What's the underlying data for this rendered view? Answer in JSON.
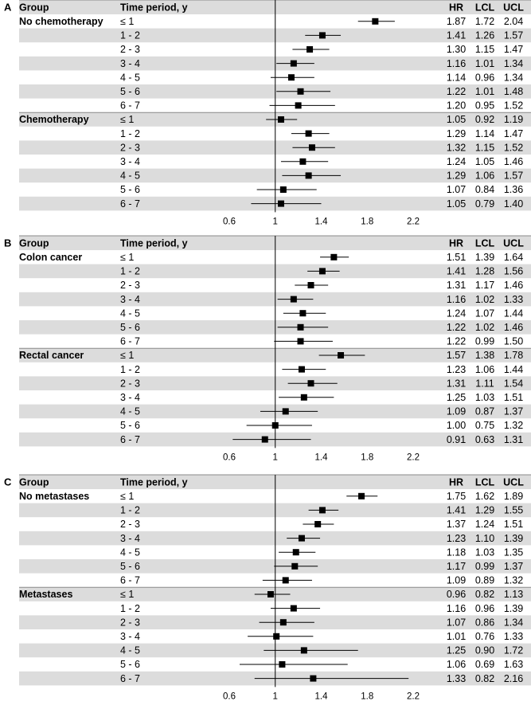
{
  "chart_data": [
    {
      "type": "forest",
      "panel_label": "A",
      "headers": {
        "group": "Group",
        "period": "Time period, y",
        "hr": "HR",
        "lcl": "LCL",
        "ucl": "UCL"
      },
      "xlim": [
        0.6,
        2.2
      ],
      "xticks": [
        "0.6",
        "1",
        "1.4",
        "1.8",
        "2.2"
      ],
      "reference_line": 1,
      "groups": [
        {
          "name": "No chemotherapy",
          "rows": [
            {
              "period": "≤ 1",
              "hr": "1.87",
              "lcl": "1.72",
              "ucl": "2.04"
            },
            {
              "period": "1 - 2",
              "hr": "1.41",
              "lcl": "1.26",
              "ucl": "1.57"
            },
            {
              "period": "2 - 3",
              "hr": "1.30",
              "lcl": "1.15",
              "ucl": "1.47"
            },
            {
              "period": "3 - 4",
              "hr": "1.16",
              "lcl": "1.01",
              "ucl": "1.34"
            },
            {
              "period": "4 - 5",
              "hr": "1.14",
              "lcl": "0.96",
              "ucl": "1.34"
            },
            {
              "period": "5 - 6",
              "hr": "1.22",
              "lcl": "1.01",
              "ucl": "1.48"
            },
            {
              "period": "6 - 7",
              "hr": "1.20",
              "lcl": "0.95",
              "ucl": "1.52"
            }
          ]
        },
        {
          "name": "Chemotherapy",
          "rows": [
            {
              "period": "≤ 1",
              "hr": "1.05",
              "lcl": "0.92",
              "ucl": "1.19"
            },
            {
              "period": "1 - 2",
              "hr": "1.29",
              "lcl": "1.14",
              "ucl": "1.47"
            },
            {
              "period": "2 - 3",
              "hr": "1.32",
              "lcl": "1.15",
              "ucl": "1.52"
            },
            {
              "period": "3 - 4",
              "hr": "1.24",
              "lcl": "1.05",
              "ucl": "1.46"
            },
            {
              "period": "4 - 5",
              "hr": "1.29",
              "lcl": "1.06",
              "ucl": "1.57"
            },
            {
              "period": "5 - 6",
              "hr": "1.07",
              "lcl": "0.84",
              "ucl": "1.36"
            },
            {
              "period": "6 - 7",
              "hr": "1.05",
              "lcl": "0.79",
              "ucl": "1.40"
            }
          ]
        }
      ]
    },
    {
      "type": "forest",
      "panel_label": "B",
      "headers": {
        "group": "Group",
        "period": "Time period, y",
        "hr": "HR",
        "lcl": "LCL",
        "ucl": "UCL"
      },
      "xlim": [
        0.6,
        2.2
      ],
      "xticks": [
        "0.6",
        "1",
        "1.4",
        "1.8",
        "2.2"
      ],
      "reference_line": 1,
      "groups": [
        {
          "name": "Colon cancer",
          "rows": [
            {
              "period": "≤ 1",
              "hr": "1.51",
              "lcl": "1.39",
              "ucl": "1.64"
            },
            {
              "period": "1 - 2",
              "hr": "1.41",
              "lcl": "1.28",
              "ucl": "1.56"
            },
            {
              "period": "2 - 3",
              "hr": "1.31",
              "lcl": "1.17",
              "ucl": "1.46"
            },
            {
              "period": "3 - 4",
              "hr": "1.16",
              "lcl": "1.02",
              "ucl": "1.33"
            },
            {
              "period": "4 - 5",
              "hr": "1.24",
              "lcl": "1.07",
              "ucl": "1.44"
            },
            {
              "period": "5 - 6",
              "hr": "1.22",
              "lcl": "1.02",
              "ucl": "1.46"
            },
            {
              "period": "6 - 7",
              "hr": "1.22",
              "lcl": "0.99",
              "ucl": "1.50"
            }
          ]
        },
        {
          "name": "Rectal cancer",
          "rows": [
            {
              "period": "≤ 1",
              "hr": "1.57",
              "lcl": "1.38",
              "ucl": "1.78"
            },
            {
              "period": "1 - 2",
              "hr": "1.23",
              "lcl": "1.06",
              "ucl": "1.44"
            },
            {
              "period": "2 - 3",
              "hr": "1.31",
              "lcl": "1.11",
              "ucl": "1.54"
            },
            {
              "period": "3 - 4",
              "hr": "1.25",
              "lcl": "1.03",
              "ucl": "1.51"
            },
            {
              "period": "4 - 5",
              "hr": "1.09",
              "lcl": "0.87",
              "ucl": "1.37"
            },
            {
              "period": "5 - 6",
              "hr": "1.00",
              "lcl": "0.75",
              "ucl": "1.32"
            },
            {
              "period": "6 - 7",
              "hr": "0.91",
              "lcl": "0.63",
              "ucl": "1.31"
            }
          ]
        }
      ]
    },
    {
      "type": "forest",
      "panel_label": "C",
      "headers": {
        "group": "Group",
        "period": "Time period, y",
        "hr": "HR",
        "lcl": "LCL",
        "ucl": "UCL"
      },
      "xlim": [
        0.6,
        2.2
      ],
      "xticks": [
        "0.6",
        "1",
        "1.4",
        "1.8",
        "2.2"
      ],
      "reference_line": 1,
      "groups": [
        {
          "name": "No metastases",
          "rows": [
            {
              "period": "≤ 1",
              "hr": "1.75",
              "lcl": "1.62",
              "ucl": "1.89"
            },
            {
              "period": "1 - 2",
              "hr": "1.41",
              "lcl": "1.29",
              "ucl": "1.55"
            },
            {
              "period": "2 - 3",
              "hr": "1.37",
              "lcl": "1.24",
              "ucl": "1.51"
            },
            {
              "period": "3 - 4",
              "hr": "1.23",
              "lcl": "1.10",
              "ucl": "1.39"
            },
            {
              "period": "4 - 5",
              "hr": "1.18",
              "lcl": "1.03",
              "ucl": "1.35"
            },
            {
              "period": "5 - 6",
              "hr": "1.17",
              "lcl": "0.99",
              "ucl": "1.37"
            },
            {
              "period": "6 - 7",
              "hr": "1.09",
              "lcl": "0.89",
              "ucl": "1.32"
            }
          ]
        },
        {
          "name": "Metastases",
          "rows": [
            {
              "period": "≤ 1",
              "hr": "0.96",
              "lcl": "0.82",
              "ucl": "1.13"
            },
            {
              "period": "1 - 2",
              "hr": "1.16",
              "lcl": "0.96",
              "ucl": "1.39"
            },
            {
              "period": "2 - 3",
              "hr": "1.07",
              "lcl": "0.86",
              "ucl": "1.34"
            },
            {
              "period": "3 - 4",
              "hr": "1.01",
              "lcl": "0.76",
              "ucl": "1.33"
            },
            {
              "period": "4 - 5",
              "hr": "1.25",
              "lcl": "0.90",
              "ucl": "1.72"
            },
            {
              "period": "5 - 6",
              "hr": "1.06",
              "lcl": "0.69",
              "ucl": "1.63"
            },
            {
              "period": "6 - 7",
              "hr": "1.33",
              "lcl": "0.82",
              "ucl": "2.16"
            }
          ]
        }
      ]
    }
  ]
}
